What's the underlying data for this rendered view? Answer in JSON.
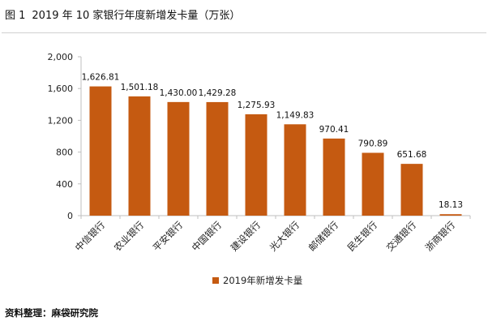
{
  "figure": {
    "label": "图 1",
    "title": "2019 年 10 家银行年度新增发卡量（万张）"
  },
  "source": "资料整理：麻袋研究院",
  "colors": {
    "bar": "#C55A11",
    "axis": "#bfbfbf"
  },
  "chart_data": {
    "type": "bar",
    "title": "2019 年 10 家银行年度新增发卡量（万张）",
    "categories": [
      "中信银行",
      "农业银行",
      "平安银行",
      "中国银行",
      "建设银行",
      "光大银行",
      "邮储银行",
      "民生银行",
      "交通银行",
      "浙商银行"
    ],
    "series": [
      {
        "name": "2019年新增发卡量",
        "values": [
          1626.81,
          1501.18,
          1430.0,
          1429.28,
          1275.93,
          1149.83,
          970.41,
          790.89,
          651.68,
          18.13
        ],
        "labels": [
          "1,626.81",
          "1,501.18",
          "1,430.00",
          "1,429.28",
          "1,275.93",
          "1,149.83",
          "970.41",
          "790.89",
          "651.68",
          "18.13"
        ]
      }
    ],
    "yticks": [
      0,
      400,
      800,
      1200,
      1600,
      2000
    ],
    "ytick_labels": [
      "0",
      "400",
      "800",
      "1,200",
      "1,600",
      "2,000"
    ],
    "ylim": [
      0,
      2000
    ],
    "xlabel": "",
    "ylabel": "",
    "grid": false,
    "legend": "bottom"
  }
}
